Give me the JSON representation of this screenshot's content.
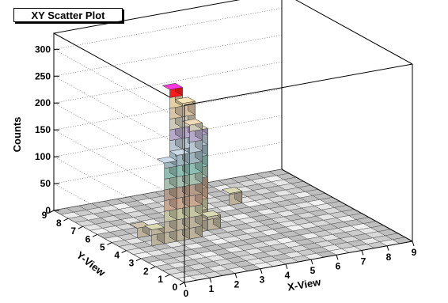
{
  "chart_data": {
    "type": "lego3d",
    "title": "XY Scatter Plot",
    "xlabel": "X-View",
    "ylabel": "Y-View",
    "zlabel": "Counts",
    "xlim": [
      0,
      9
    ],
    "ylim": [
      0,
      9
    ],
    "zlim": [
      0,
      330
    ],
    "x_ticks": [
      "0",
      "1",
      "2",
      "3",
      "4",
      "5",
      "6",
      "7",
      "8",
      "9"
    ],
    "y_ticks": [
      "0",
      "1",
      "2",
      "3",
      "4",
      "5",
      "6",
      "7",
      "8",
      "9"
    ],
    "z_ticks": [
      "0",
      "50",
      "100",
      "150",
      "200",
      "250",
      "300"
    ],
    "bins": [
      {
        "x": 2.0,
        "y": 4.5,
        "z": 275
      },
      {
        "x": 2.5,
        "y": 4.5,
        "z": 245
      },
      {
        "x": 2.5,
        "y": 4.0,
        "z": 212
      },
      {
        "x": 3.0,
        "y": 4.5,
        "z": 190
      },
      {
        "x": 1.5,
        "y": 4.0,
        "z": 150
      },
      {
        "x": 2.0,
        "y": 4.0,
        "z": 160
      },
      {
        "x": 1.0,
        "y": 4.0,
        "z": 30
      },
      {
        "x": 3.5,
        "y": 4.5,
        "z": 25
      },
      {
        "x": 5.5,
        "y": 6.5,
        "z": 22
      },
      {
        "x": 1.0,
        "y": 5.0,
        "z": 18
      }
    ]
  },
  "colors": {
    "palette": [
      "#bdb39c",
      "#c5c5a3",
      "#c9a892",
      "#b59c8a",
      "#a8c0b0",
      "#8fbfb3",
      "#9fb6bf",
      "#b9c7d3",
      "#b7a9c9",
      "#cfcab8",
      "#d9c5a6",
      "#e3d1a4",
      "#ff1a1a",
      "#ff33cc",
      "#1acc1a",
      "#0a0a0a"
    ]
  }
}
